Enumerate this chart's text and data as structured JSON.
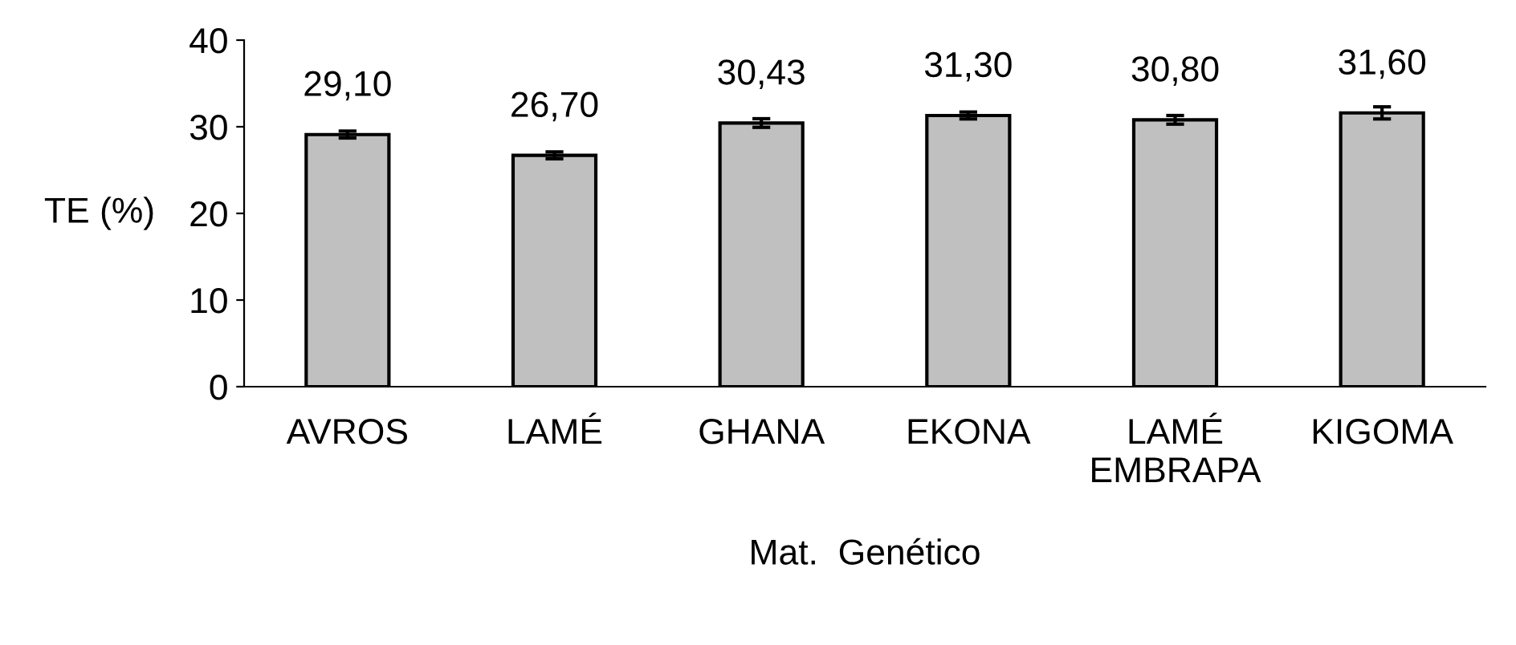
{
  "chart_data": {
    "type": "bar",
    "xlabel": "Mat.  Genético",
    "ylabel": "TE (%)",
    "categories": [
      "AVROS",
      "LAMÉ",
      "GHANA",
      "EKONA",
      "LAMÉ\nEMBRAPA",
      "KIGOMA"
    ],
    "values": [
      29.1,
      26.7,
      30.43,
      31.3,
      30.8,
      31.6
    ],
    "value_labels": [
      "29,10",
      "26,70",
      "30,43",
      "31,30",
      "30,80",
      "31,60"
    ],
    "errors": [
      0.4,
      0.4,
      0.5,
      0.4,
      0.5,
      0.7
    ],
    "color": "#c0c0c0",
    "ylim": [
      0,
      40
    ],
    "yticks": [
      0,
      10,
      20,
      30,
      40
    ],
    "grid": false
  }
}
